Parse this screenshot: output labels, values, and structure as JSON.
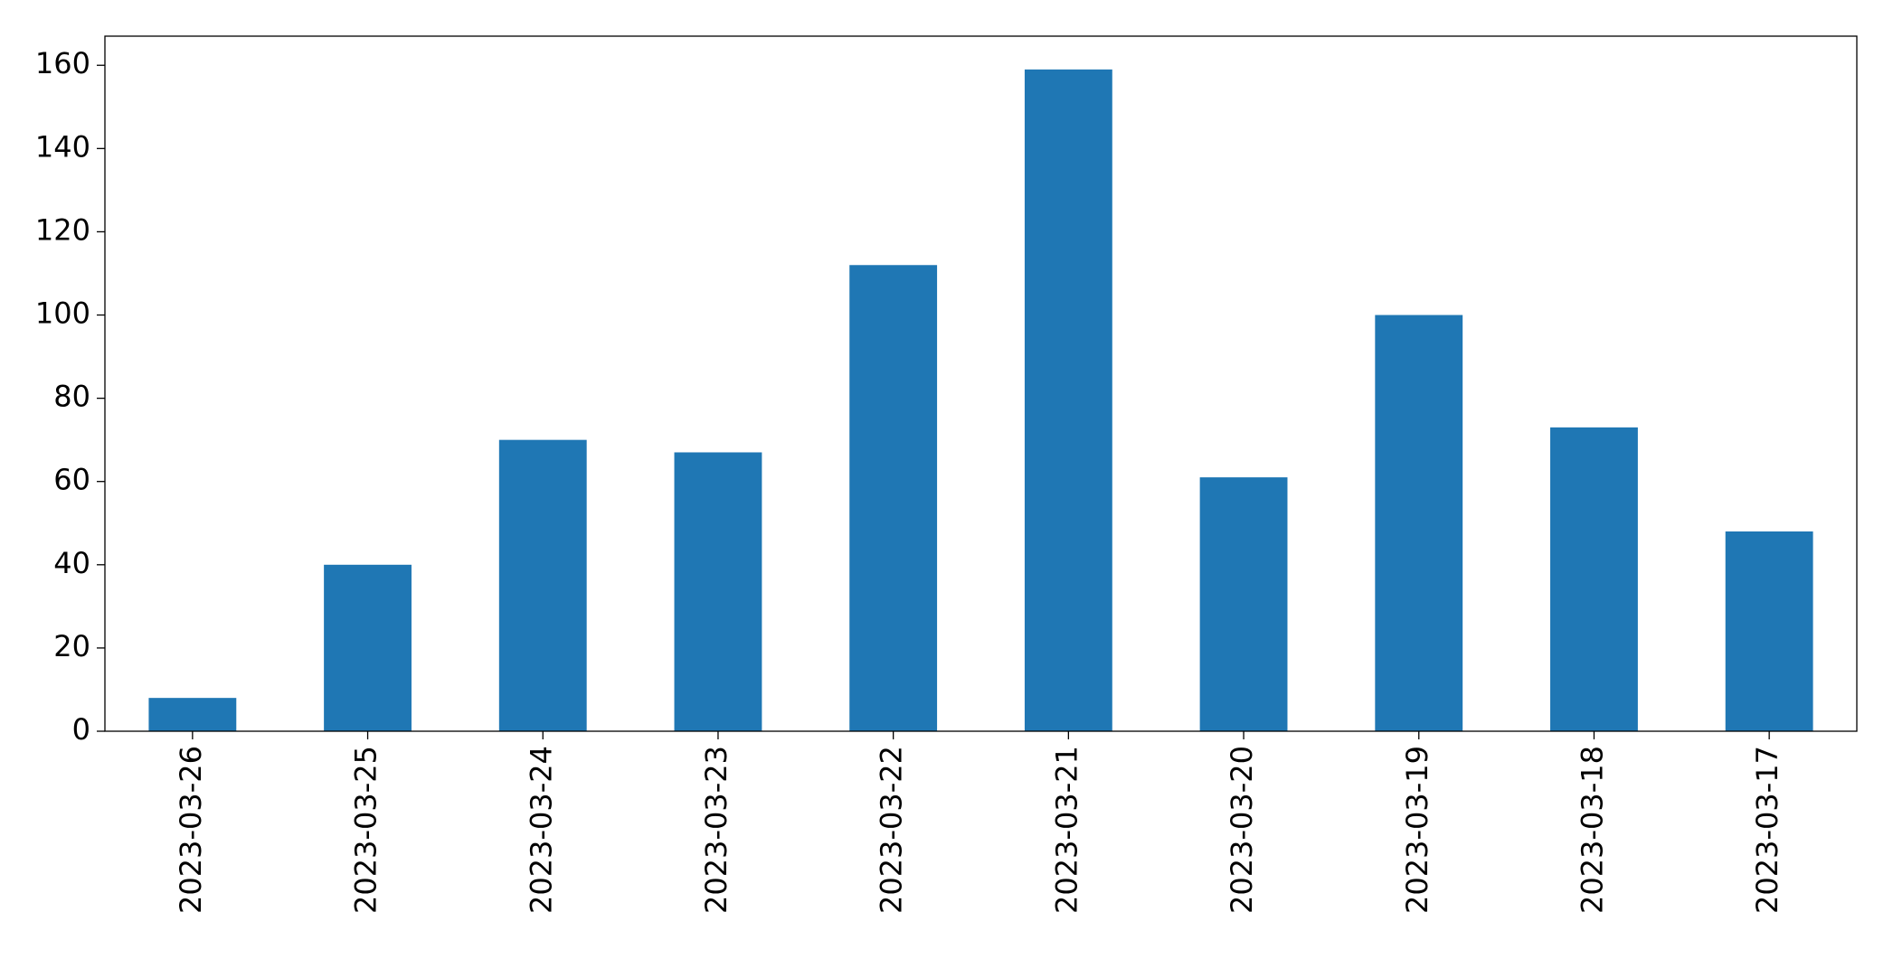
{
  "chart_data": {
    "type": "bar",
    "categories": [
      "2023-03-26",
      "2023-03-25",
      "2023-03-24",
      "2023-03-23",
      "2023-03-22",
      "2023-03-21",
      "2023-03-20",
      "2023-03-19",
      "2023-03-18",
      "2023-03-17"
    ],
    "values": [
      8,
      40,
      70,
      67,
      112,
      159,
      61,
      100,
      73,
      48
    ],
    "color": "#1f77b4",
    "ylim": [
      0,
      167
    ],
    "yticks": [
      0,
      20,
      40,
      60,
      80,
      100,
      120,
      140,
      160
    ],
    "grid": false
  }
}
